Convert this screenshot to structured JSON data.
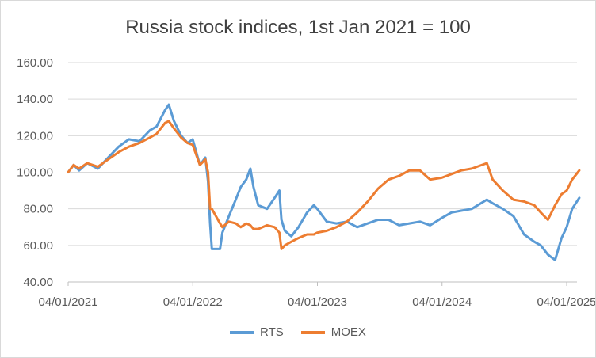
{
  "chart_data": {
    "type": "line",
    "title": "Russia stock indices, 1st Jan 2021 = 100",
    "xlabel": "",
    "ylabel": "",
    "ylim": [
      40,
      160
    ],
    "y_ticks": [
      "40.00",
      "60.00",
      "80.00",
      "100.00",
      "120.00",
      "140.00",
      "160.00"
    ],
    "x_ticks": [
      "04/01/2021",
      "04/01/2022",
      "04/01/2023",
      "04/01/2024",
      "04/01/2025"
    ],
    "x_range": [
      "2021-01-04",
      "2025-01-04"
    ],
    "grid": "horizontal",
    "legend_position": "bottom",
    "series": [
      {
        "name": "RTS",
        "color": "#5b9bd5",
        "points": [
          [
            "2021-01-04",
            100
          ],
          [
            "2021-01-20",
            104
          ],
          [
            "2021-02-05",
            101
          ],
          [
            "2021-03-01",
            105
          ],
          [
            "2021-04-01",
            102
          ],
          [
            "2021-05-01",
            108
          ],
          [
            "2021-06-01",
            114
          ],
          [
            "2021-07-01",
            118
          ],
          [
            "2021-08-01",
            117
          ],
          [
            "2021-09-01",
            123
          ],
          [
            "2021-09-20",
            125
          ],
          [
            "2021-10-15",
            134
          ],
          [
            "2021-10-26",
            137
          ],
          [
            "2021-11-10",
            128
          ],
          [
            "2021-12-01",
            120
          ],
          [
            "2021-12-20",
            116
          ],
          [
            "2022-01-04",
            118
          ],
          [
            "2022-01-25",
            104
          ],
          [
            "2022-02-10",
            108
          ],
          [
            "2022-02-18",
            95
          ],
          [
            "2022-02-24",
            72
          ],
          [
            "2022-03-01",
            58
          ],
          [
            "2022-03-25",
            58
          ],
          [
            "2022-04-01",
            67
          ],
          [
            "2022-04-20",
            76
          ],
          [
            "2022-05-10",
            85
          ],
          [
            "2022-05-25",
            92
          ],
          [
            "2022-06-10",
            96
          ],
          [
            "2022-06-22",
            102
          ],
          [
            "2022-07-01",
            92
          ],
          [
            "2022-07-15",
            82
          ],
          [
            "2022-08-10",
            80
          ],
          [
            "2022-09-01",
            86
          ],
          [
            "2022-09-15",
            90
          ],
          [
            "2022-09-21",
            74
          ],
          [
            "2022-10-01",
            68
          ],
          [
            "2022-10-20",
            65
          ],
          [
            "2022-11-10",
            70
          ],
          [
            "2022-12-05",
            78
          ],
          [
            "2022-12-25",
            82
          ],
          [
            "2023-01-04",
            80
          ],
          [
            "2023-02-01",
            73
          ],
          [
            "2023-03-01",
            72
          ],
          [
            "2023-04-01",
            73
          ],
          [
            "2023-05-01",
            70
          ],
          [
            "2023-06-01",
            72
          ],
          [
            "2023-07-01",
            74
          ],
          [
            "2023-08-01",
            74
          ],
          [
            "2023-09-01",
            71
          ],
          [
            "2023-10-01",
            72
          ],
          [
            "2023-11-01",
            73
          ],
          [
            "2023-12-01",
            71
          ],
          [
            "2024-01-04",
            75
          ],
          [
            "2024-02-01",
            78
          ],
          [
            "2024-03-01",
            79
          ],
          [
            "2024-04-01",
            80
          ],
          [
            "2024-05-15",
            85
          ],
          [
            "2024-06-01",
            83
          ],
          [
            "2024-07-01",
            80
          ],
          [
            "2024-08-01",
            76
          ],
          [
            "2024-09-01",
            66
          ],
          [
            "2024-10-01",
            62
          ],
          [
            "2024-10-20",
            60
          ],
          [
            "2024-11-10",
            55
          ],
          [
            "2024-12-01",
            52
          ],
          [
            "2024-12-20",
            64
          ],
          [
            "2025-01-04",
            70
          ],
          [
            "2025-01-20",
            80
          ],
          [
            "2025-02-10",
            86
          ]
        ]
      },
      {
        "name": "MOEX",
        "color": "#ed7d31",
        "points": [
          [
            "2021-01-04",
            100
          ],
          [
            "2021-01-20",
            104
          ],
          [
            "2021-02-05",
            102
          ],
          [
            "2021-03-01",
            105
          ],
          [
            "2021-04-01",
            103
          ],
          [
            "2021-05-01",
            107
          ],
          [
            "2021-06-01",
            111
          ],
          [
            "2021-07-01",
            114
          ],
          [
            "2021-08-01",
            116
          ],
          [
            "2021-09-01",
            119
          ],
          [
            "2021-09-20",
            121
          ],
          [
            "2021-10-15",
            127
          ],
          [
            "2021-10-26",
            128
          ],
          [
            "2021-11-10",
            124
          ],
          [
            "2021-12-01",
            119
          ],
          [
            "2021-12-20",
            116
          ],
          [
            "2022-01-04",
            115
          ],
          [
            "2022-01-25",
            104
          ],
          [
            "2022-02-10",
            107
          ],
          [
            "2022-02-18",
            100
          ],
          [
            "2022-02-24",
            80
          ],
          [
            "2022-03-01",
            80
          ],
          [
            "2022-03-25",
            72
          ],
          [
            "2022-04-01",
            70
          ],
          [
            "2022-04-20",
            73
          ],
          [
            "2022-05-10",
            72
          ],
          [
            "2022-05-25",
            70
          ],
          [
            "2022-06-10",
            72
          ],
          [
            "2022-06-22",
            71
          ],
          [
            "2022-07-01",
            69
          ],
          [
            "2022-07-15",
            69
          ],
          [
            "2022-08-10",
            71
          ],
          [
            "2022-09-01",
            70
          ],
          [
            "2022-09-15",
            67
          ],
          [
            "2022-09-21",
            58
          ],
          [
            "2022-10-01",
            60
          ],
          [
            "2022-10-20",
            62
          ],
          [
            "2022-11-10",
            64
          ],
          [
            "2022-12-05",
            66
          ],
          [
            "2022-12-25",
            66
          ],
          [
            "2023-01-04",
            67
          ],
          [
            "2023-02-01",
            68
          ],
          [
            "2023-03-01",
            70
          ],
          [
            "2023-04-01",
            73
          ],
          [
            "2023-05-01",
            78
          ],
          [
            "2023-06-01",
            84
          ],
          [
            "2023-07-01",
            91
          ],
          [
            "2023-08-01",
            96
          ],
          [
            "2023-09-01",
            98
          ],
          [
            "2023-10-01",
            101
          ],
          [
            "2023-11-01",
            101
          ],
          [
            "2023-12-01",
            96
          ],
          [
            "2024-01-04",
            97
          ],
          [
            "2024-02-01",
            99
          ],
          [
            "2024-03-01",
            101
          ],
          [
            "2024-04-01",
            102
          ],
          [
            "2024-05-15",
            105
          ],
          [
            "2024-06-01",
            96
          ],
          [
            "2024-07-01",
            90
          ],
          [
            "2024-08-01",
            85
          ],
          [
            "2024-09-01",
            84
          ],
          [
            "2024-10-01",
            82
          ],
          [
            "2024-10-20",
            78
          ],
          [
            "2024-11-10",
            74
          ],
          [
            "2024-12-01",
            82
          ],
          [
            "2024-12-20",
            88
          ],
          [
            "2025-01-04",
            90
          ],
          [
            "2025-01-20",
            96
          ],
          [
            "2025-02-10",
            101
          ]
        ]
      }
    ]
  }
}
